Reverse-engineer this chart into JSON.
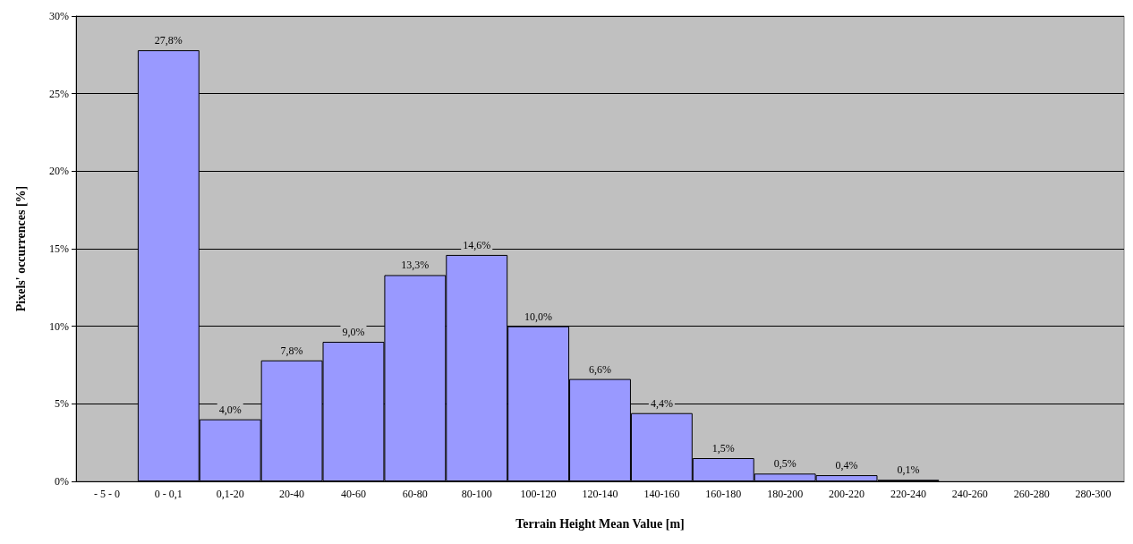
{
  "chart_data": {
    "type": "bar",
    "xlabel": "Terrain Height Mean Value [m]",
    "ylabel": "Pixels' occurrences [%]",
    "categories": [
      "- 5 - 0",
      "0 - 0,1",
      "0,1-20",
      "20-40",
      "40-60",
      "60-80",
      "80-100",
      "100-120",
      "120-140",
      "140-160",
      "160-180",
      "180-200",
      "200-220",
      "220-240",
      "240-260",
      "260-280",
      "280-300"
    ],
    "values": [
      null,
      27.8,
      4.0,
      7.8,
      9.0,
      13.3,
      14.6,
      10.0,
      6.6,
      4.4,
      1.5,
      0.5,
      0.4,
      0.1,
      null,
      null,
      null
    ],
    "value_labels": [
      null,
      "27,8%",
      "4,0%",
      "7,8%",
      "9,0%",
      "13,3%",
      "14,6%",
      "10,0%",
      "6,6%",
      "4,4%",
      "1,5%",
      "0,5%",
      "0,4%",
      "0,1%",
      null,
      null,
      null
    ],
    "color": "#9999ff",
    "ylim": [
      0,
      30
    ],
    "yticks": [
      {
        "value": 0,
        "label": "0%"
      },
      {
        "value": 5,
        "label": "5%"
      },
      {
        "value": 10,
        "label": "10%"
      },
      {
        "value": 15,
        "label": "15%"
      },
      {
        "value": 20,
        "label": "20%"
      },
      {
        "value": 25,
        "label": "25%"
      },
      {
        "value": 30,
        "label": "30%"
      }
    ],
    "grid": "y"
  }
}
